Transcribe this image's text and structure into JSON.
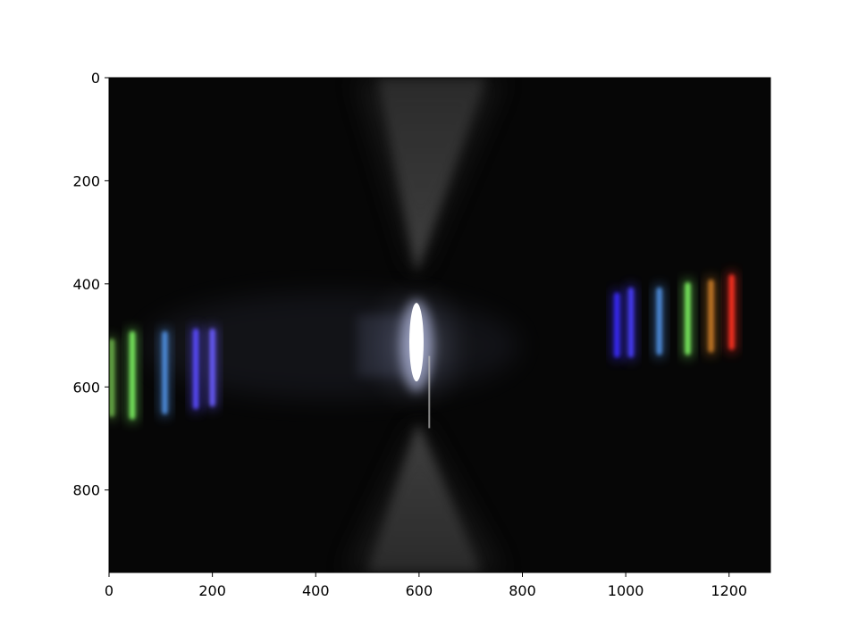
{
  "image": {
    "subject": "diffraction-grating-spectrum",
    "x_ticks": [
      "0",
      "200",
      "400",
      "600",
      "800",
      "1000",
      "1200"
    ],
    "y_ticks": [
      "0",
      "200",
      "400",
      "600",
      "800"
    ],
    "xlim": [
      0,
      1280
    ],
    "ylim": [
      960,
      0
    ],
    "y_inverted": true,
    "colors": {
      "background": "#ffffff",
      "plot_background": "#060606",
      "axis": "#000000",
      "central_spot": "#ffffff",
      "violet_line": "#4a3cff",
      "blue_line": "#4f8fe0",
      "green_line": "#7cf060",
      "orange_line": "#c87a28",
      "red_line": "#ff3020"
    },
    "left_spectrum_lines": [
      {
        "x": 5,
        "y_top": 500,
        "y_bottom": 665,
        "color": "#6ab04a"
      },
      {
        "x": 45,
        "y_top": 485,
        "y_bottom": 670,
        "color": "#7cf060"
      },
      {
        "x": 108,
        "y_top": 485,
        "y_bottom": 660,
        "color": "#4f8fe0"
      },
      {
        "x": 168,
        "y_top": 480,
        "y_bottom": 650,
        "color": "#5a4cff"
      },
      {
        "x": 200,
        "y_top": 480,
        "y_bottom": 645,
        "color": "#6a5cff"
      }
    ],
    "right_spectrum_lines": [
      {
        "x": 983,
        "y_top": 410,
        "y_bottom": 550,
        "color": "#3a2cff"
      },
      {
        "x": 1010,
        "y_top": 400,
        "y_bottom": 550,
        "color": "#4a3cff"
      },
      {
        "x": 1065,
        "y_top": 400,
        "y_bottom": 545,
        "color": "#4f8fe0"
      },
      {
        "x": 1120,
        "y_top": 390,
        "y_bottom": 545,
        "color": "#7cf060"
      },
      {
        "x": 1165,
        "y_top": 385,
        "y_bottom": 540,
        "color": "#c87a28"
      },
      {
        "x": 1205,
        "y_top": 375,
        "y_bottom": 535,
        "color": "#ff3020"
      }
    ],
    "central_spot": {
      "x": 595,
      "y": 520
    }
  }
}
